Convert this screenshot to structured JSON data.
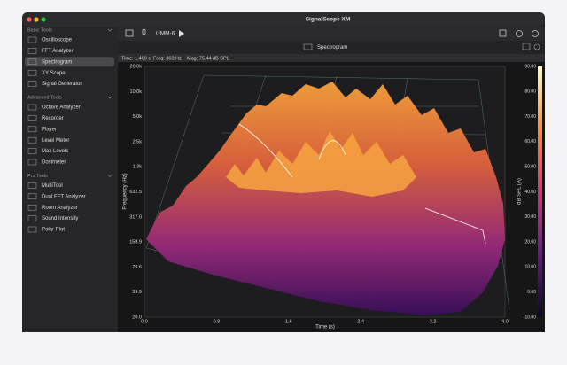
{
  "window": {
    "title": "SignalScope XM"
  },
  "sidebar": [
    {
      "heading": "Basic Tools",
      "items": [
        "Oscilloscope",
        "FFT Analyzer",
        "Spectrogram",
        "XY Scope",
        "Signal Generator"
      ]
    },
    {
      "heading": "Advanced Tools",
      "items": [
        "Octave Analyzer",
        "Recorder",
        "Player",
        "Level Meter",
        "Max Levels",
        "Dosimeter"
      ]
    },
    {
      "heading": "Pro Tools",
      "items": [
        "MultiTool",
        "Dual FFT Analyzer",
        "Room Analyzer",
        "Sound Intensity",
        "Polar Plot"
      ]
    }
  ],
  "selected": "Spectrogram",
  "toolbar": {
    "device": "UMM-6"
  },
  "tab": {
    "label": "Spectrogram"
  },
  "status": [
    "Time: 1.400 s",
    "Freq: 360 Hz",
    "Mag: 75.44 dB SPL"
  ],
  "plot": {
    "y_label": "Frequency (Hz)",
    "x_label": "Time (s)",
    "z_label": "dB SPL (A)",
    "y_ticks": [
      "20.0k",
      "10.0k",
      "5.0k",
      "2.5k",
      "1.3k",
      "632.5",
      "317.0",
      "158.9",
      "79.6",
      "39.9",
      "20.0"
    ],
    "x_ticks": [
      "0.0",
      "0.8",
      "1.6",
      "2.4",
      "3.2",
      "4.0"
    ],
    "z_ticks": [
      "90.00",
      "80.00",
      "70.00",
      "60.00",
      "50.00",
      "40.00",
      "30.00",
      "20.00",
      "10.00",
      "0.00",
      "-10.00"
    ]
  }
}
